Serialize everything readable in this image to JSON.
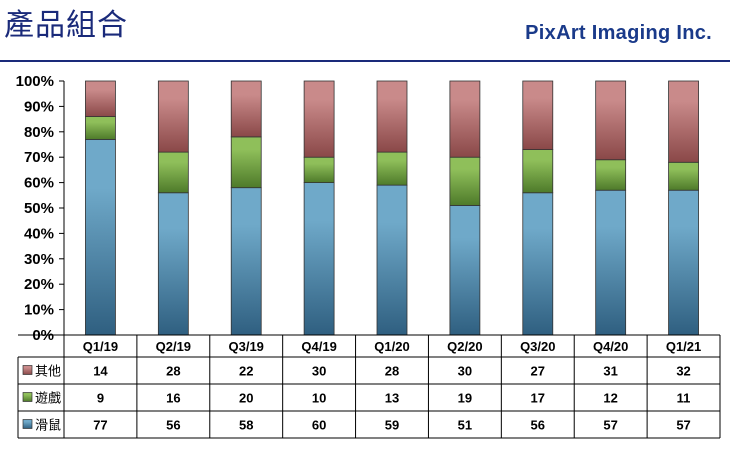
{
  "header": {
    "title": "產品組合",
    "brand": "PixArt  Imaging Inc."
  },
  "colors": {
    "other": "#c98a8a",
    "game": "#8fbf5a",
    "mouse": "#6fa9c9"
  },
  "chart_data": {
    "type": "bar",
    "stacked": true,
    "categories": [
      "Q1/19",
      "Q2/19",
      "Q3/19",
      "Q4/19",
      "Q1/20",
      "Q2/20",
      "Q3/20",
      "Q4/20",
      "Q1/21"
    ],
    "series": [
      {
        "name": "滑鼠",
        "values": [
          77,
          56,
          58,
          60,
          59,
          51,
          56,
          57,
          57
        ]
      },
      {
        "name": "遊戲",
        "values": [
          9,
          16,
          20,
          10,
          13,
          19,
          17,
          12,
          11
        ]
      },
      {
        "name": "其他",
        "values": [
          14,
          28,
          22,
          30,
          28,
          30,
          27,
          31,
          32
        ]
      }
    ],
    "y_ticks": [
      "0%",
      "10%",
      "20%",
      "30%",
      "40%",
      "50%",
      "60%",
      "70%",
      "80%",
      "90%",
      "100%"
    ],
    "ylim": [
      0,
      100
    ],
    "grid": false,
    "legend": "data-table",
    "table_rows": [
      {
        "label": "其他",
        "values": [
          14,
          28,
          22,
          30,
          28,
          30,
          27,
          31,
          32
        ]
      },
      {
        "label": "遊戲",
        "values": [
          9,
          16,
          20,
          10,
          13,
          19,
          17,
          12,
          11
        ]
      },
      {
        "label": "滑鼠",
        "values": [
          77,
          56,
          58,
          60,
          59,
          51,
          56,
          57,
          57
        ]
      }
    ]
  }
}
